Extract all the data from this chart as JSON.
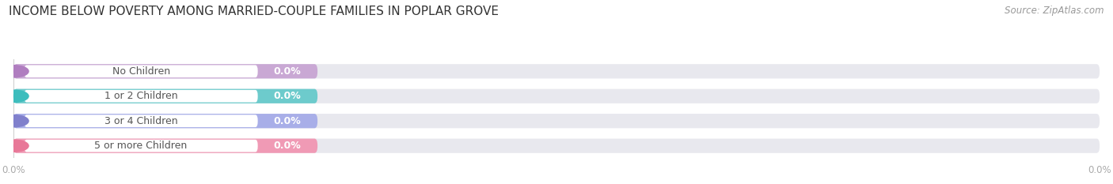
{
  "title": "INCOME BELOW POVERTY AMONG MARRIED-COUPLE FAMILIES IN POPLAR GROVE",
  "source": "Source: ZipAtlas.com",
  "categories": [
    "No Children",
    "1 or 2 Children",
    "3 or 4 Children",
    "5 or more Children"
  ],
  "values": [
    0.0,
    0.0,
    0.0,
    0.0
  ],
  "bar_colors": [
    "#c9a8d4",
    "#6dcbcc",
    "#a8aee8",
    "#f09ab5"
  ],
  "bar_bg_color": "#e8e8ee",
  "dot_colors": [
    "#b07ec0",
    "#3dbdbd",
    "#8080cc",
    "#e87898"
  ],
  "value_label_color": "#ffffff",
  "cat_label_color": "#555555",
  "tick_color": "#aaaaaa",
  "grid_color": "#cccccc",
  "xlim_max": 100,
  "fig_width": 14.06,
  "fig_height": 2.33,
  "background_color": "#ffffff",
  "title_fontsize": 11,
  "source_fontsize": 8.5,
  "bar_height": 0.58,
  "tick_label_fontsize": 8.5,
  "cat_label_fontsize": 9,
  "val_label_fontsize": 9
}
